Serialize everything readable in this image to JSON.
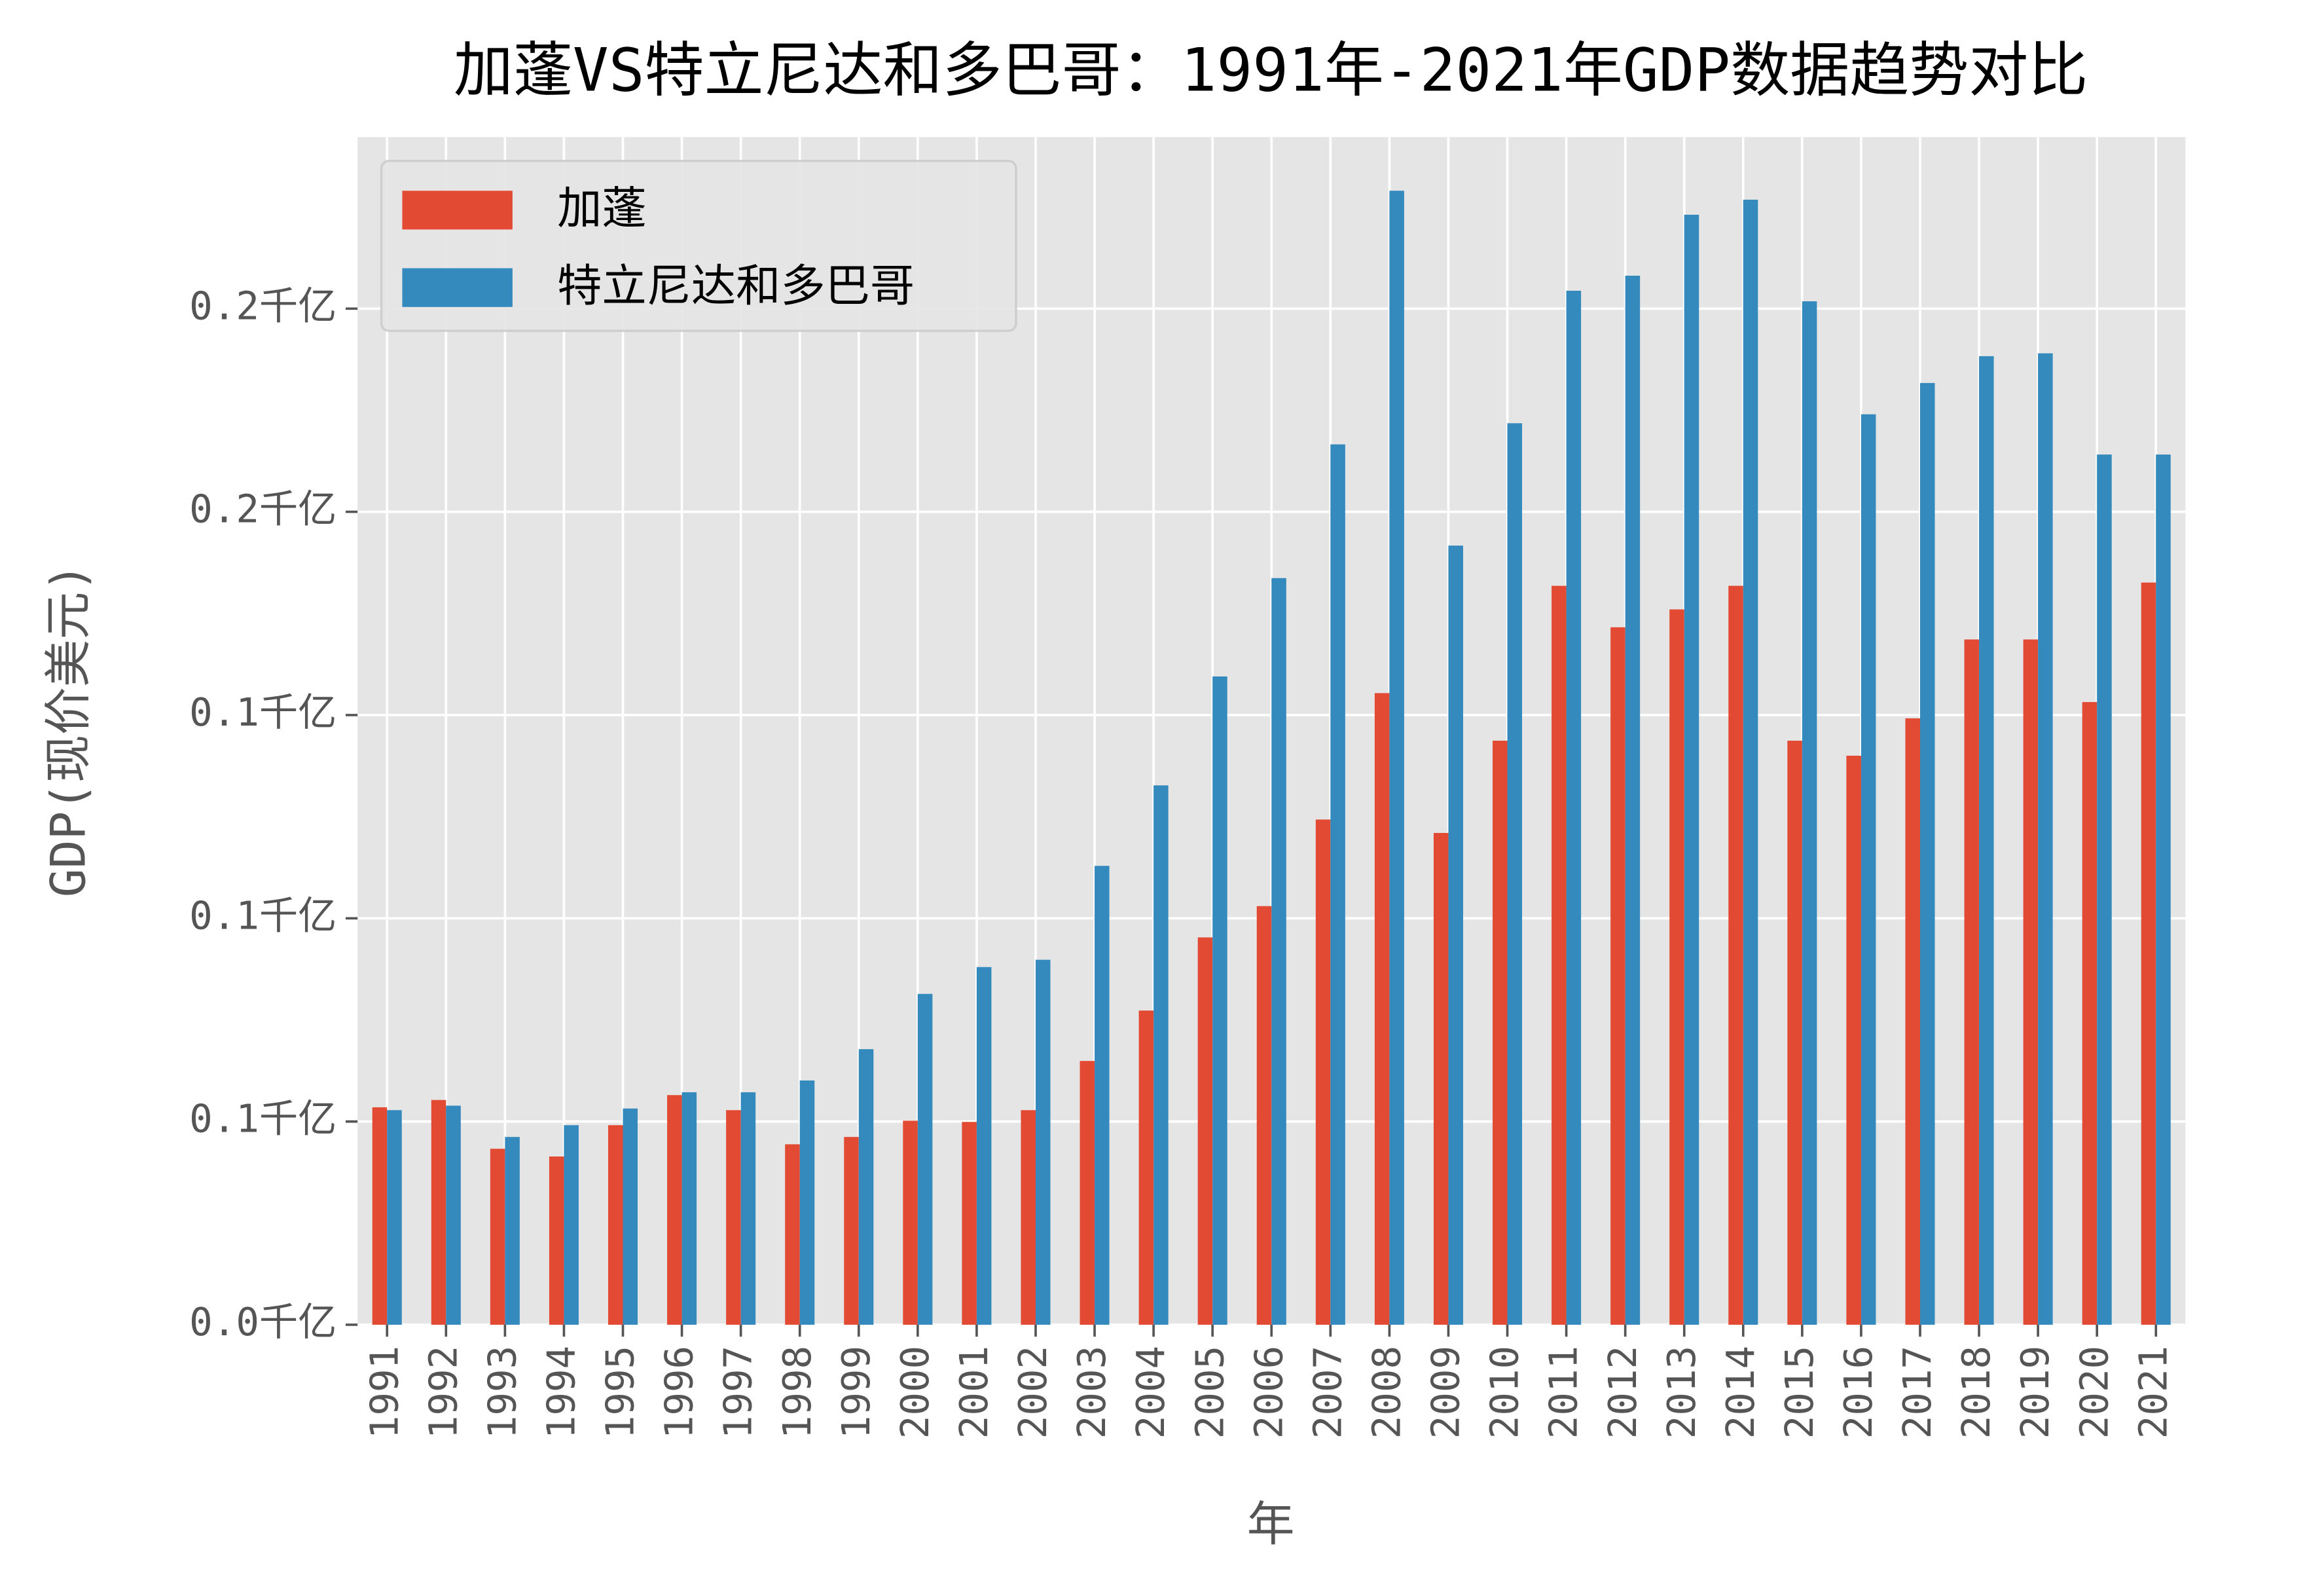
{
  "chart_data": {
    "type": "bar",
    "title": "加蓬VS特立尼达和多巴哥：1991年-2021年GDP数据趋势对比",
    "x_label": "年",
    "y_label": "GDP(现价美元)",
    "categories": [
      "1991",
      "1992",
      "1993",
      "1994",
      "1995",
      "1996",
      "1997",
      "1998",
      "1999",
      "2000",
      "2001",
      "2002",
      "2003",
      "2004",
      "2005",
      "2006",
      "2007",
      "2008",
      "2009",
      "2010",
      "2011",
      "2012",
      "2013",
      "2014",
      "2015",
      "2016",
      "2017",
      "2018",
      "2019",
      "2020",
      "2021"
    ],
    "series": [
      {
        "name": "加蓬",
        "color": "#e24a33",
        "values": [
          0.0535,
          0.0553,
          0.0433,
          0.0414,
          0.0491,
          0.0565,
          0.0528,
          0.0444,
          0.0462,
          0.0502,
          0.0499,
          0.0528,
          0.0649,
          0.0773,
          0.0953,
          0.103,
          0.1243,
          0.1554,
          0.121,
          0.1437,
          0.1818,
          0.1716,
          0.176,
          0.1818,
          0.1437,
          0.14,
          0.1492,
          0.1686,
          0.1686,
          0.1532,
          0.1826
        ]
      },
      {
        "name": "特立尼达和多巴哥",
        "color": "#348abd",
        "values": [
          0.0528,
          0.0539,
          0.0462,
          0.0491,
          0.0532,
          0.0572,
          0.0572,
          0.0601,
          0.0678,
          0.0814,
          0.088,
          0.0898,
          0.1129,
          0.1327,
          0.1595,
          0.1837,
          0.2166,
          0.279,
          0.1917,
          0.2218,
          0.2544,
          0.2581,
          0.2731,
          0.2768,
          0.2518,
          0.224,
          0.2317,
          0.2383,
          0.239,
          0.2141,
          0.2141
        ]
      }
    ],
    "ylim": [
      0,
      0.2922
    ],
    "yticks": [
      {
        "value": 0,
        "label": "0.0千亿"
      },
      {
        "value": 0.05,
        "label": "0.1千亿"
      },
      {
        "value": 0.1,
        "label": "0.1千亿"
      },
      {
        "value": 0.15,
        "label": "0.1千亿"
      },
      {
        "value": 0.2,
        "label": "0.2千亿"
      },
      {
        "value": 0.25,
        "label": "0.2千亿"
      }
    ],
    "grid": true,
    "legend": "upper left"
  }
}
